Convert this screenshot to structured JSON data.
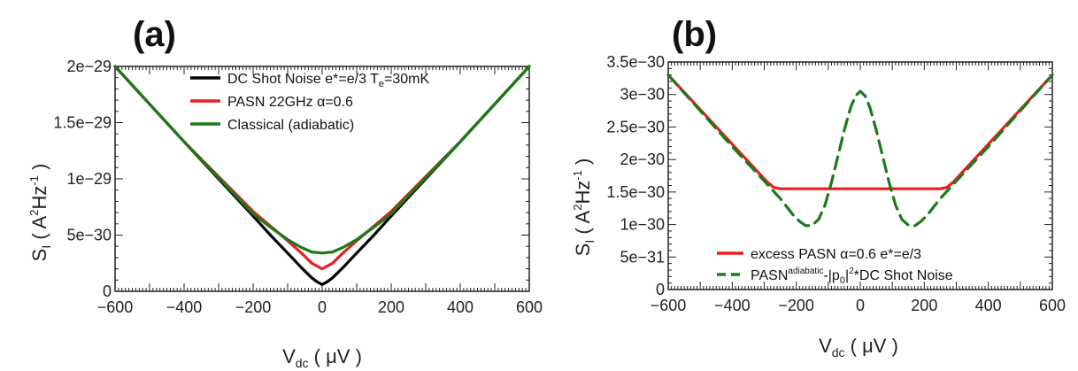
{
  "chart_data": [
    {
      "panel_label": "(a)",
      "type": "line",
      "xlabel": {
        "main": "V",
        "sub": "dc",
        "rest": " ( μV )"
      },
      "ylabel": {
        "main": "S",
        "sub": "I",
        "mid": " ( A",
        "sup1": "2",
        "mid2": "Hz",
        "sup2": "-1",
        "end": " )"
      },
      "xlim": [
        -600,
        600
      ],
      "ylim": [
        0,
        2e-29
      ],
      "x_ticks": [
        -600,
        -400,
        -200,
        0,
        200,
        400,
        600
      ],
      "x_tick_labels": [
        "−600",
        "−400",
        "−200",
        "0",
        "200",
        "400",
        "600"
      ],
      "y_ticks": [
        0,
        5e-30,
        1e-29,
        1.5e-29,
        2e-29
      ],
      "y_tick_labels": [
        "0",
        "5e−30",
        "1e−29",
        "1.5e−29",
        "2e−29"
      ],
      "legend_position": "top-center",
      "series": [
        {
          "name": "DC Shot Noise e*=e/3 T<sub>e</sub>=30mK",
          "legend": {
            "text": "DC Shot Noise e*=e/3 T",
            "sub": "e",
            "rest": "=30mK"
          },
          "color": "#000000",
          "dash": "solid",
          "x": [
            -600,
            -400,
            -200,
            -150,
            -100,
            -60,
            -30,
            -15,
            0,
            15,
            30,
            60,
            100,
            150,
            200,
            400,
            600
          ],
          "y": [
            2e-29,
            1.33e-29,
            6.7e-30,
            5e-30,
            3.4e-30,
            2.1e-30,
            1.2e-30,
            8.5e-31,
            6e-31,
            8.5e-31,
            1.2e-30,
            2.1e-30,
            3.4e-30,
            5e-30,
            6.7e-30,
            1.33e-29,
            2e-29
          ]
        },
        {
          "name": "PASN 22GHz α=0.6",
          "legend": {
            "text": "PASN 22GHz α=0.6"
          },
          "color": "#ee1c1c",
          "dash": "solid",
          "x": [
            -600,
            -400,
            -200,
            -150,
            -100,
            -60,
            -30,
            0,
            30,
            60,
            100,
            150,
            200,
            400,
            600
          ],
          "y": [
            2e-29,
            1.33e-29,
            7.1e-30,
            5.8e-30,
            4.5e-30,
            3.4e-30,
            2.5e-30,
            2e-30,
            2.5e-30,
            3.4e-30,
            4.5e-30,
            5.8e-30,
            7.1e-30,
            1.33e-29,
            2e-29
          ]
        },
        {
          "name": "Classical (adiabatic)",
          "legend": {
            "text": "Classical (adiabatic)"
          },
          "color": "#1a7a1a",
          "dash": "solid",
          "x": [
            -600,
            -400,
            -200,
            -150,
            -100,
            -60,
            -30,
            0,
            30,
            60,
            100,
            150,
            200,
            400,
            600
          ],
          "y": [
            2e-29,
            1.33e-29,
            6.9e-30,
            5.7e-30,
            4.6e-30,
            3.9e-30,
            3.5e-30,
            3.4e-30,
            3.5e-30,
            3.9e-30,
            4.6e-30,
            5.7e-30,
            6.9e-30,
            1.33e-29,
            2e-29
          ]
        }
      ]
    },
    {
      "panel_label": "(b)",
      "type": "line",
      "xlabel": {
        "main": "V",
        "sub": "dc",
        "rest": " ( μV )"
      },
      "ylabel": {
        "main": "S",
        "sub": "I",
        "mid": " ( A",
        "sup1": "2",
        "mid2": "Hz",
        "sup2": "-1",
        "end": " )"
      },
      "xlim": [
        -600,
        600
      ],
      "ylim": [
        0,
        3.5e-30
      ],
      "x_ticks": [
        -600,
        -400,
        -200,
        0,
        200,
        400,
        600
      ],
      "x_tick_labels": [
        "−600",
        "−400",
        "−200",
        "0",
        "200",
        "400",
        "600"
      ],
      "y_ticks": [
        0,
        5e-31,
        1e-30,
        1.5e-30,
        2e-30,
        2.5e-30,
        3e-30,
        3.5e-30
      ],
      "y_tick_labels": [
        "0",
        "5e−31",
        "1e−30",
        "1.5e−30",
        "2e−30",
        "2.5e−30",
        "3e−30",
        "3.5e−30"
      ],
      "legend_position": "bottom-center",
      "series": [
        {
          "name": "excess PASN  α=0.6  e*=e/3",
          "legend": {
            "text": "excess PASN  α=0.6  e*=e/3"
          },
          "color": "#ee1c1c",
          "dash": "solid",
          "x": [
            -600,
            -290,
            -270,
            -250,
            -200,
            0,
            200,
            250,
            270,
            290,
            600
          ],
          "y": [
            3.3e-30,
            1.65e-30,
            1.57e-30,
            1.55e-30,
            1.55e-30,
            1.55e-30,
            1.55e-30,
            1.55e-30,
            1.57e-30,
            1.65e-30,
            3.3e-30
          ]
        },
        {
          "name": "PASN adiabatic -|p0|^2*DC Shot Noise",
          "legend": {
            "text": "PASN",
            "sup": "adiabatic",
            "mid": "-|p",
            "sub": "0",
            "mid2": "|",
            "sup2": "2",
            "rest": "*DC Shot Noise"
          },
          "color": "#1a7a1a",
          "dash": "dashed",
          "x": [
            -600,
            -500,
            -400,
            -300,
            -250,
            -210,
            -190,
            -170,
            -150,
            -130,
            -110,
            -90,
            -70,
            -50,
            -30,
            -15,
            0,
            15,
            30,
            50,
            70,
            90,
            110,
            130,
            150,
            170,
            190,
            210,
            250,
            300,
            400,
            500,
            600
          ],
          "y": [
            3.3e-30,
            2.75e-30,
            2.2e-30,
            1.67e-30,
            1.4e-30,
            1.15e-30,
            1.05e-30,
            9.8e-31,
            9.9e-31,
            1.08e-30,
            1.3e-30,
            1.65e-30,
            2.05e-30,
            2.45e-30,
            2.8e-30,
            2.98e-30,
            3.05e-30,
            2.98e-30,
            2.8e-30,
            2.45e-30,
            2.05e-30,
            1.65e-30,
            1.3e-30,
            1.08e-30,
            9.9e-31,
            9.8e-31,
            1.05e-30,
            1.15e-30,
            1.4e-30,
            1.67e-30,
            2.2e-30,
            2.75e-30,
            3.3e-30
          ]
        }
      ]
    }
  ]
}
